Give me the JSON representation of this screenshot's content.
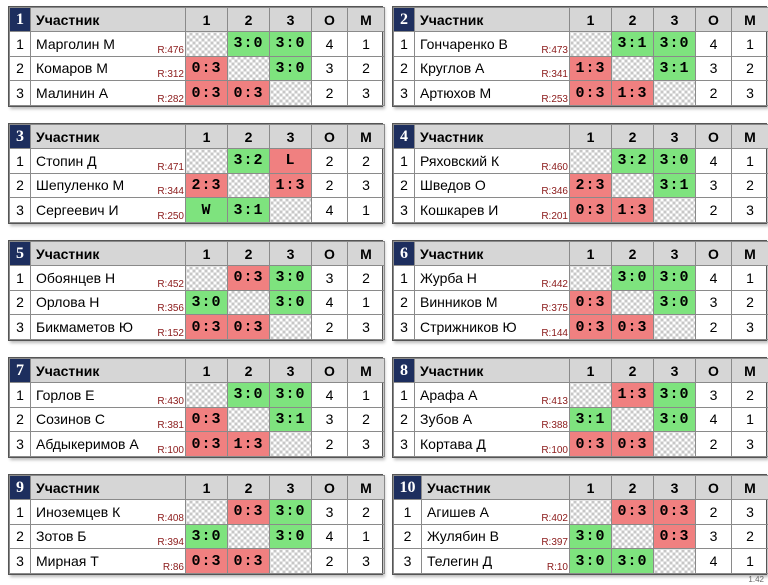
{
  "headers": {
    "participant": "Участник",
    "c1": "1",
    "c2": "2",
    "c3": "3",
    "o": "О",
    "m": "М"
  },
  "colors": {
    "win": "#7ee37e",
    "loss": "#f08080",
    "header_number_bg": "#1d2e5e",
    "header_bg": "#d6d6d6"
  },
  "version": "1.42",
  "groups": [
    {
      "num": "1",
      "rows": [
        {
          "pos": "1",
          "name": "Марголин М",
          "rating": "R:476",
          "cells": [
            "",
            "3:0",
            "3:0"
          ],
          "cls": [
            "x",
            "w",
            "w"
          ],
          "o": "4",
          "m": "1"
        },
        {
          "pos": "2",
          "name": "Комаров М",
          "rating": "R:312",
          "cells": [
            "0:3",
            "",
            "3:0"
          ],
          "cls": [
            "l",
            "x",
            "w"
          ],
          "o": "3",
          "m": "2"
        },
        {
          "pos": "3",
          "name": "Малинин А",
          "rating": "R:282",
          "cells": [
            "0:3",
            "0:3",
            ""
          ],
          "cls": [
            "l",
            "l",
            "x"
          ],
          "o": "2",
          "m": "3"
        }
      ]
    },
    {
      "num": "2",
      "rows": [
        {
          "pos": "1",
          "name": "Гончаренко В",
          "rating": "R:473",
          "cells": [
            "",
            "3:1",
            "3:0"
          ],
          "cls": [
            "x",
            "w",
            "w"
          ],
          "o": "4",
          "m": "1"
        },
        {
          "pos": "2",
          "name": "Круглов А",
          "rating": "R:341",
          "cells": [
            "1:3",
            "",
            "3:1"
          ],
          "cls": [
            "l",
            "x",
            "w"
          ],
          "o": "3",
          "m": "2"
        },
        {
          "pos": "3",
          "name": "Артюхов М",
          "rating": "R:253",
          "cells": [
            "0:3",
            "1:3",
            ""
          ],
          "cls": [
            "l",
            "l",
            "x"
          ],
          "o": "2",
          "m": "3"
        }
      ]
    },
    {
      "num": "3",
      "rows": [
        {
          "pos": "1",
          "name": "Стопин Д",
          "rating": "R:471",
          "cells": [
            "",
            "3:2",
            "L"
          ],
          "cls": [
            "x",
            "w",
            "l"
          ],
          "o": "2",
          "m": "2"
        },
        {
          "pos": "2",
          "name": "Шепуленко М",
          "rating": "R:344",
          "cells": [
            "2:3",
            "",
            "1:3"
          ],
          "cls": [
            "l",
            "x",
            "l"
          ],
          "o": "2",
          "m": "3"
        },
        {
          "pos": "3",
          "name": "Сергеевич И",
          "rating": "R:250",
          "cells": [
            "W",
            "3:1",
            ""
          ],
          "cls": [
            "w",
            "w",
            "x"
          ],
          "o": "4",
          "m": "1"
        }
      ]
    },
    {
      "num": "4",
      "rows": [
        {
          "pos": "1",
          "name": "Ряховский К",
          "rating": "R:460",
          "cells": [
            "",
            "3:2",
            "3:0"
          ],
          "cls": [
            "x",
            "w",
            "w"
          ],
          "o": "4",
          "m": "1"
        },
        {
          "pos": "2",
          "name": "Шведов О",
          "rating": "R:346",
          "cells": [
            "2:3",
            "",
            "3:1"
          ],
          "cls": [
            "l",
            "x",
            "w"
          ],
          "o": "3",
          "m": "2"
        },
        {
          "pos": "3",
          "name": "Кошкарев И",
          "rating": "R:201",
          "cells": [
            "0:3",
            "1:3",
            ""
          ],
          "cls": [
            "l",
            "l",
            "x"
          ],
          "o": "2",
          "m": "3"
        }
      ]
    },
    {
      "num": "5",
      "rows": [
        {
          "pos": "1",
          "name": "Обоянцев Н",
          "rating": "R:452",
          "cells": [
            "",
            "0:3",
            "3:0"
          ],
          "cls": [
            "x",
            "l",
            "w"
          ],
          "o": "3",
          "m": "2"
        },
        {
          "pos": "2",
          "name": "Орлова Н",
          "rating": "R:356",
          "cells": [
            "3:0",
            "",
            "3:0"
          ],
          "cls": [
            "w",
            "x",
            "w"
          ],
          "o": "4",
          "m": "1"
        },
        {
          "pos": "3",
          "name": "Бикмаметов Ю",
          "rating": "R:152",
          "cells": [
            "0:3",
            "0:3",
            ""
          ],
          "cls": [
            "l",
            "l",
            "x"
          ],
          "o": "2",
          "m": "3"
        }
      ]
    },
    {
      "num": "6",
      "rows": [
        {
          "pos": "1",
          "name": "Журба Н",
          "rating": "R:442",
          "cells": [
            "",
            "3:0",
            "3:0"
          ],
          "cls": [
            "x",
            "w",
            "w"
          ],
          "o": "4",
          "m": "1"
        },
        {
          "pos": "2",
          "name": "Винников М",
          "rating": "R:375",
          "cells": [
            "0:3",
            "",
            "3:0"
          ],
          "cls": [
            "l",
            "x",
            "w"
          ],
          "o": "3",
          "m": "2"
        },
        {
          "pos": "3",
          "name": "Стрижников Ю",
          "rating": "R:144",
          "cells": [
            "0:3",
            "0:3",
            ""
          ],
          "cls": [
            "l",
            "l",
            "x"
          ],
          "o": "2",
          "m": "3"
        }
      ]
    },
    {
      "num": "7",
      "rows": [
        {
          "pos": "1",
          "name": "Горлов Е",
          "rating": "R:430",
          "cells": [
            "",
            "3:0",
            "3:0"
          ],
          "cls": [
            "x",
            "w",
            "w"
          ],
          "o": "4",
          "m": "1"
        },
        {
          "pos": "2",
          "name": "Созинов С",
          "rating": "R:381",
          "cells": [
            "0:3",
            "",
            "3:1"
          ],
          "cls": [
            "l",
            "x",
            "w"
          ],
          "o": "3",
          "m": "2"
        },
        {
          "pos": "3",
          "name": "Абдыкеримов А",
          "rating": "R:100",
          "cells": [
            "0:3",
            "1:3",
            ""
          ],
          "cls": [
            "l",
            "l",
            "x"
          ],
          "o": "2",
          "m": "3"
        }
      ]
    },
    {
      "num": "8",
      "rows": [
        {
          "pos": "1",
          "name": "Арафа А",
          "rating": "R:413",
          "cells": [
            "",
            "1:3",
            "3:0"
          ],
          "cls": [
            "x",
            "l",
            "w"
          ],
          "o": "3",
          "m": "2"
        },
        {
          "pos": "2",
          "name": "Зубов А",
          "rating": "R:388",
          "cells": [
            "3:1",
            "",
            "3:0"
          ],
          "cls": [
            "w",
            "x",
            "w"
          ],
          "o": "4",
          "m": "1"
        },
        {
          "pos": "3",
          "name": "Кортава Д",
          "rating": "R:100",
          "cells": [
            "0:3",
            "0:3",
            ""
          ],
          "cls": [
            "l",
            "l",
            "x"
          ],
          "o": "2",
          "m": "3"
        }
      ]
    },
    {
      "num": "9",
      "rows": [
        {
          "pos": "1",
          "name": "Иноземцев К",
          "rating": "R:408",
          "cells": [
            "",
            "0:3",
            "3:0"
          ],
          "cls": [
            "x",
            "l",
            "w"
          ],
          "o": "3",
          "m": "2"
        },
        {
          "pos": "2",
          "name": "Зотов Б",
          "rating": "R:394",
          "cells": [
            "3:0",
            "",
            "3:0"
          ],
          "cls": [
            "w",
            "x",
            "w"
          ],
          "o": "4",
          "m": "1"
        },
        {
          "pos": "3",
          "name": "Мирная Т",
          "rating": "R:86",
          "cells": [
            "0:3",
            "0:3",
            ""
          ],
          "cls": [
            "l",
            "l",
            "x"
          ],
          "o": "2",
          "m": "3"
        }
      ]
    },
    {
      "num": "10",
      "rows": [
        {
          "pos": "1",
          "name": "Агишев А",
          "rating": "R:402",
          "cells": [
            "",
            "0:3",
            "0:3"
          ],
          "cls": [
            "x",
            "l",
            "l"
          ],
          "o": "2",
          "m": "3"
        },
        {
          "pos": "2",
          "name": "Жулябин В",
          "rating": "R:397",
          "cells": [
            "3:0",
            "",
            "0:3"
          ],
          "cls": [
            "w",
            "x",
            "l"
          ],
          "o": "3",
          "m": "2"
        },
        {
          "pos": "3",
          "name": "Телегин Д",
          "rating": "R:10",
          "cells": [
            "3:0",
            "3:0",
            ""
          ],
          "cls": [
            "w",
            "w",
            "x"
          ],
          "o": "4",
          "m": "1"
        }
      ]
    }
  ]
}
